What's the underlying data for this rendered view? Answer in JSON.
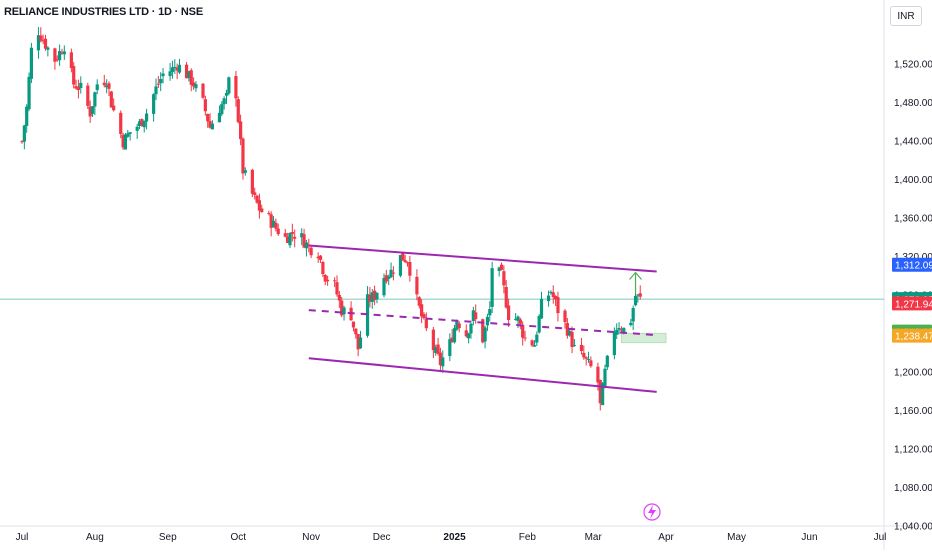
{
  "header": {
    "symbol_title": "RELIANCE INDUSTRIES LTD · 1D · NSE",
    "currency": "INR"
  },
  "colors": {
    "up": "#089981",
    "down": "#f23645",
    "channel": "#9c27b0",
    "last_price_line": "#089981",
    "demand_zone": "#c8e6c9",
    "arrow": "#4caf50"
  },
  "chart_data": {
    "type": "candlestick",
    "ylim": [
      1020,
      1560
    ],
    "yticks": [
      1040,
      1080,
      1120,
      1160,
      1200,
      1240,
      1280,
      1320,
      1360,
      1400,
      1440,
      1480,
      1520
    ],
    "ytick_labels": [
      "1,040.00",
      "1,080.00",
      "1,120.00",
      "1,160.00",
      "1,200.00",
      "1,240.00",
      "1,280.00",
      "1,320.00",
      "1,360.00",
      "1,400.00",
      "1,440.00",
      "1,480.00",
      "1,520.00"
    ],
    "x_labels": [
      {
        "label": "Jul",
        "date": "2024-07-01",
        "bold": false
      },
      {
        "label": "Aug",
        "date": "2024-08-01",
        "bold": false
      },
      {
        "label": "Sep",
        "date": "2024-09-01",
        "bold": false
      },
      {
        "label": "Oct",
        "date": "2024-10-01",
        "bold": false
      },
      {
        "label": "Nov",
        "date": "2024-11-01",
        "bold": false
      },
      {
        "label": "Dec",
        "date": "2024-12-01",
        "bold": false
      },
      {
        "label": "2025",
        "date": "2025-01-01",
        "bold": true
      },
      {
        "label": "Feb",
        "date": "2025-02-01",
        "bold": false
      },
      {
        "label": "Mar",
        "date": "2025-03-01",
        "bold": false
      },
      {
        "label": "Apr",
        "date": "2025-04-01",
        "bold": false
      },
      {
        "label": "May",
        "date": "2025-05-01",
        "bold": false
      },
      {
        "label": "Jun",
        "date": "2025-06-01",
        "bold": false
      },
      {
        "label": "Jul",
        "date": "2025-07-01",
        "bold": false
      }
    ],
    "price_path": [
      [
        "2024-07-01",
        1440
      ],
      [
        "2024-07-03",
        1475
      ],
      [
        "2024-07-05",
        1535
      ],
      [
        "2024-07-08",
        1555
      ],
      [
        "2024-07-10",
        1545
      ],
      [
        "2024-07-15",
        1525
      ],
      [
        "2024-07-19",
        1540
      ],
      [
        "2024-07-23",
        1500
      ],
      [
        "2024-07-26",
        1495
      ],
      [
        "2024-07-30",
        1470
      ],
      [
        "2024-08-02",
        1500
      ],
      [
        "2024-08-06",
        1505
      ],
      [
        "2024-08-08",
        1480
      ],
      [
        "2024-08-13",
        1440
      ],
      [
        "2024-08-16",
        1450
      ],
      [
        "2024-08-20",
        1458
      ],
      [
        "2024-08-23",
        1470
      ],
      [
        "2024-08-27",
        1495
      ],
      [
        "2024-08-30",
        1510
      ],
      [
        "2024-09-03",
        1515
      ],
      [
        "2024-09-05",
        1520
      ],
      [
        "2024-09-09",
        1510
      ],
      [
        "2024-09-12",
        1500
      ],
      [
        "2024-09-16",
        1480
      ],
      [
        "2024-09-19",
        1455
      ],
      [
        "2024-09-23",
        1475
      ],
      [
        "2024-09-26",
        1485
      ],
      [
        "2024-09-28",
        1520
      ],
      [
        "2024-09-30",
        1490
      ],
      [
        "2024-10-03",
        1410
      ],
      [
        "2024-10-07",
        1385
      ],
      [
        "2024-10-10",
        1370
      ],
      [
        "2024-10-14",
        1360
      ],
      [
        "2024-10-17",
        1350
      ],
      [
        "2024-10-21",
        1340
      ],
      [
        "2024-10-24",
        1345
      ],
      [
        "2024-10-28",
        1340
      ],
      [
        "2024-10-31",
        1330
      ],
      [
        "2024-11-04",
        1325
      ],
      [
        "2024-11-07",
        1300
      ],
      [
        "2024-11-11",
        1290
      ],
      [
        "2024-11-14",
        1265
      ],
      [
        "2024-11-18",
        1260
      ],
      [
        "2024-11-21",
        1225
      ],
      [
        "2024-11-25",
        1275
      ],
      [
        "2024-11-28",
        1280
      ],
      [
        "2024-12-02",
        1300
      ],
      [
        "2024-12-05",
        1305
      ],
      [
        "2024-12-09",
        1320
      ],
      [
        "2024-12-12",
        1318
      ],
      [
        "2024-12-16",
        1275
      ],
      [
        "2024-12-19",
        1250
      ],
      [
        "2024-12-23",
        1225
      ],
      [
        "2024-12-26",
        1210
      ],
      [
        "2024-12-30",
        1230
      ],
      [
        "2025-01-02",
        1255
      ],
      [
        "2025-01-06",
        1240
      ],
      [
        "2025-01-09",
        1260
      ],
      [
        "2025-01-13",
        1235
      ],
      [
        "2025-01-16",
        1265
      ],
      [
        "2025-01-17",
        1310
      ],
      [
        "2025-01-21",
        1300
      ],
      [
        "2025-01-24",
        1260
      ],
      [
        "2025-01-28",
        1255
      ],
      [
        "2025-01-31",
        1235
      ],
      [
        "2025-02-04",
        1230
      ],
      [
        "2025-02-07",
        1270
      ],
      [
        "2025-02-11",
        1285
      ],
      [
        "2025-02-14",
        1265
      ],
      [
        "2025-02-18",
        1245
      ],
      [
        "2025-02-21",
        1225
      ],
      [
        "2025-02-25",
        1215
      ],
      [
        "2025-02-28",
        1205
      ],
      [
        "2025-03-03",
        1190
      ],
      [
        "2025-03-04",
        1165
      ],
      [
        "2025-03-06",
        1200
      ],
      [
        "2025-03-10",
        1245
      ],
      [
        "2025-03-12",
        1250
      ],
      [
        "2025-03-14",
        1245
      ],
      [
        "2025-03-17",
        1255
      ],
      [
        "2025-03-19",
        1280
      ],
      [
        "2025-03-21",
        1276.35
      ]
    ],
    "price_tags": [
      {
        "value": 1312.09,
        "label": "1,312.09",
        "color": "#2962ff"
      },
      {
        "value": 1276.35,
        "label": "1,276.35",
        "color": "#089981"
      },
      {
        "value": 1271.94,
        "label": "1,271.94",
        "color": "#f23645"
      },
      {
        "value": 1242.63,
        "label": "1,242.63",
        "color": "#4caf50"
      },
      {
        "value": 1238.47,
        "label": "1,238.47",
        "color": "#f5a623"
      }
    ],
    "last_price": 1276.35,
    "channel": {
      "upper": [
        [
          "2024-10-31",
          1332
        ],
        [
          "2025-03-28",
          1305
        ]
      ],
      "mid": [
        [
          "2024-10-31",
          1265
        ],
        [
          "2025-03-28",
          1239
        ]
      ],
      "lower": [
        [
          "2024-10-31",
          1215
        ],
        [
          "2025-03-28",
          1180
        ]
      ]
    },
    "demand_zone": {
      "from": "2025-03-13",
      "to": "2025-04-01",
      "high": 1241,
      "low": 1231
    },
    "breakout_arrow": {
      "date": "2025-03-19",
      "from": 1282,
      "to": 1304
    }
  }
}
